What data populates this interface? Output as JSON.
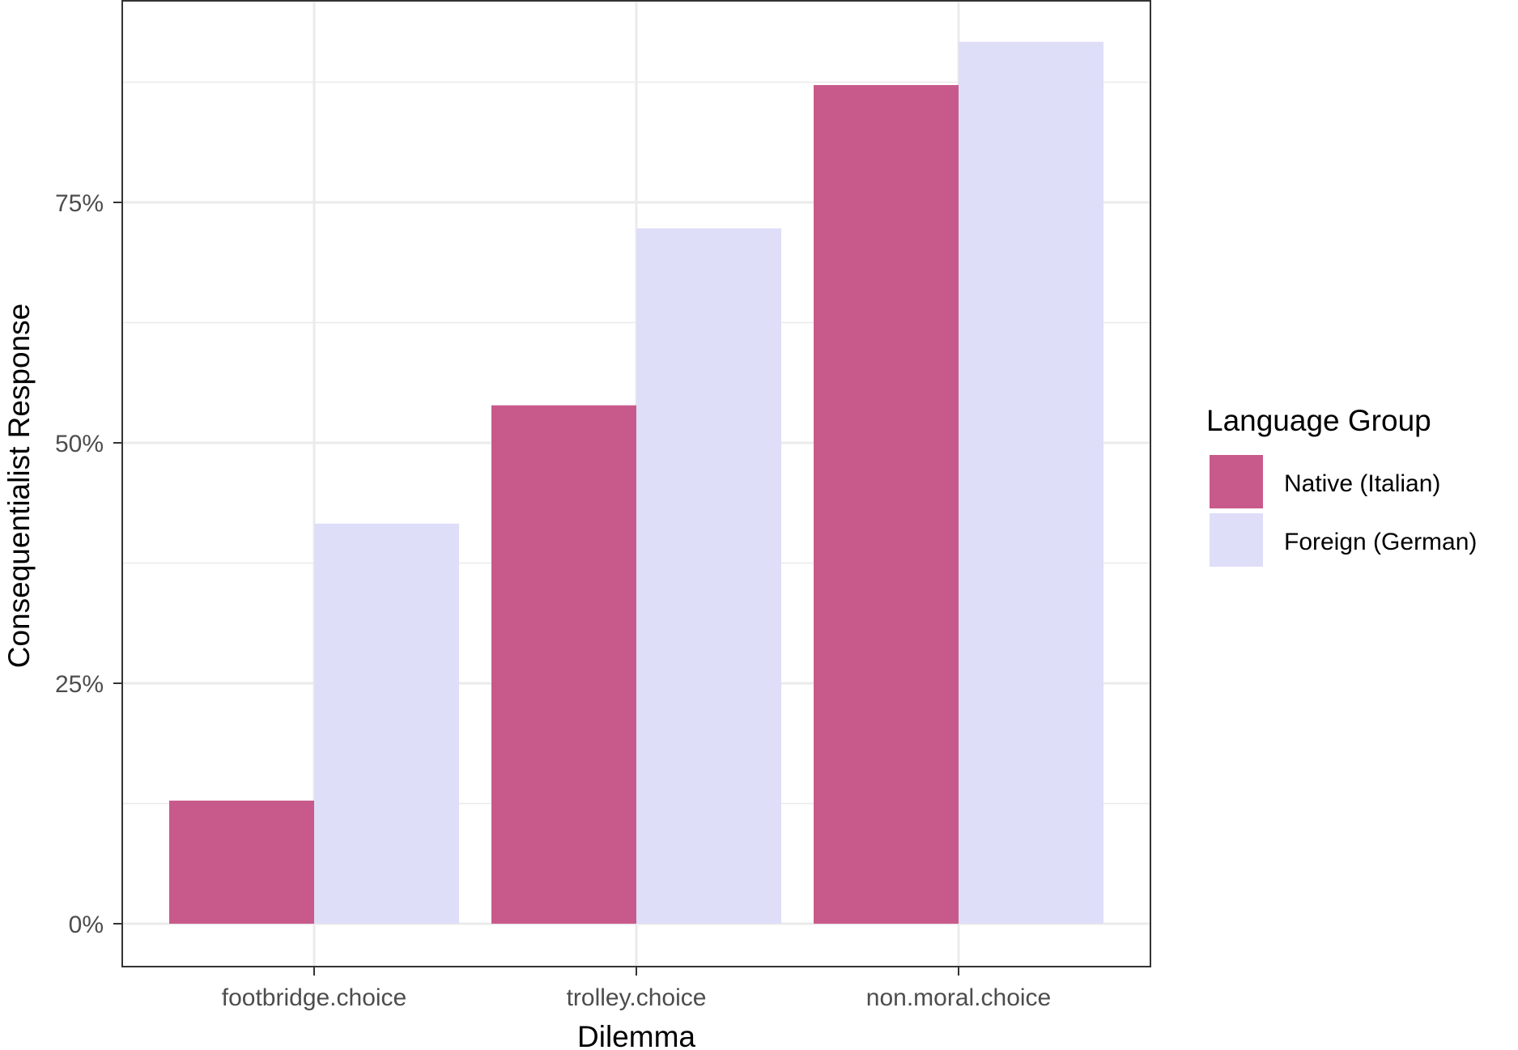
{
  "chart_data": {
    "type": "bar",
    "xlabel": "Dilemma",
    "ylabel": "Consequentialist Response",
    "categories": [
      "footbridge.choice",
      "trolley.choice",
      "non.moral.choice"
    ],
    "series": [
      {
        "name": "Native (Italian)",
        "values": [
          12.8,
          53.9,
          87.2
        ],
        "color": "#C85A8B"
      },
      {
        "name": "Foreign (German)",
        "values": [
          41.6,
          72.3,
          91.7
        ],
        "color": "#DEDEF8"
      }
    ],
    "ylim": [
      0,
      95
    ],
    "yticks": [
      0,
      25,
      50,
      75
    ],
    "ytick_labels": [
      "0%",
      "25%",
      "50%",
      "75%"
    ],
    "grid": true,
    "legend": {
      "title": "Language Group",
      "position": "right"
    }
  }
}
